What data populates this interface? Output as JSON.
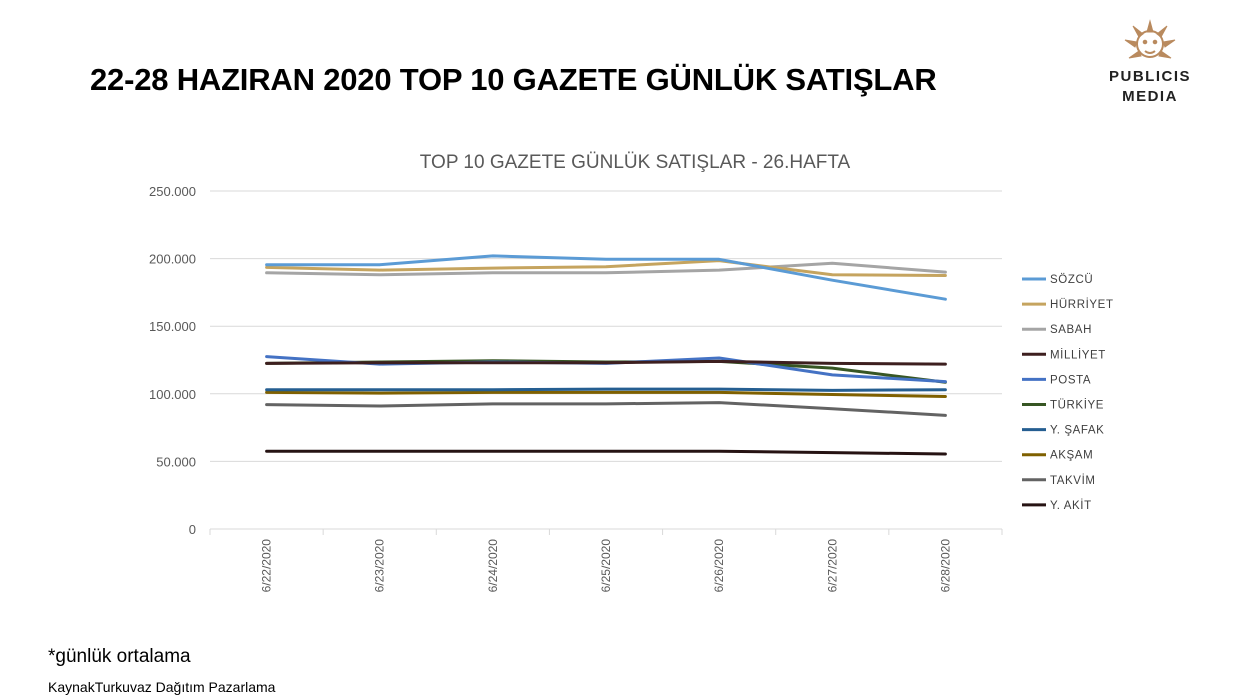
{
  "page": {
    "title": "22-28 HAZIRAN 2020 TOP 10 GAZETE GÜNLÜK SATIŞLAR",
    "footnote": "*günlük ortalama",
    "source": "KaynakTurkuvaz Dağıtım Pazarlama"
  },
  "logo": {
    "line1": "PUBLICIS",
    "line2": "MEDIA",
    "color": "#b98a5e",
    "icon": "lion-head-icon"
  },
  "chart_data": {
    "type": "line",
    "title": "TOP 10 GAZETE GÜNLÜK SATIŞLAR - 26.HAFTA",
    "xlabel": "",
    "ylabel": "",
    "ylim": [
      0,
      250000
    ],
    "y_ticks": [
      "0",
      "50.000",
      "100.000",
      "150.000",
      "200.000",
      "250.000"
    ],
    "y_tick_values": [
      0,
      50000,
      100000,
      150000,
      200000,
      250000
    ],
    "grid": true,
    "legend_position": "right",
    "categories": [
      "6/22/2020",
      "6/23/2020",
      "6/24/2020",
      "6/25/2020",
      "6/26/2020",
      "6/27/2020",
      "6/28/2020"
    ],
    "series": [
      {
        "name": "SÖZCÜ",
        "color": "#5b9bd5",
        "values": [
          195500,
          195500,
          202000,
          199500,
          199500,
          184000,
          170000
        ]
      },
      {
        "name": "HÜRRİYET",
        "color": "#c5a45f",
        "values": [
          193500,
          191500,
          193000,
          194000,
          198500,
          188000,
          187500
        ]
      },
      {
        "name": "SABAH",
        "color": "#a5a5a5",
        "values": [
          189500,
          188000,
          189500,
          189500,
          191500,
          196500,
          190000
        ]
      },
      {
        "name": "MİLLİYET",
        "color": "#3d1f1f",
        "values": [
          122500,
          123000,
          123000,
          123000,
          124000,
          122500,
          122000
        ]
      },
      {
        "name": "POSTA",
        "color": "#4472c4",
        "values": [
          127500,
          122000,
          123500,
          122500,
          126500,
          114000,
          109000
        ]
      },
      {
        "name": "TÜRKİYE",
        "color": "#375623",
        "values": [
          122500,
          123500,
          124500,
          123500,
          124000,
          119000,
          108500
        ]
      },
      {
        "name": "Y. ŞAFAK",
        "color": "#255e91",
        "values": [
          103000,
          103000,
          103000,
          103500,
          103500,
          102500,
          103000
        ]
      },
      {
        "name": "AKŞAM",
        "color": "#7f6000",
        "values": [
          101000,
          100500,
          101000,
          101000,
          101000,
          99500,
          98000
        ]
      },
      {
        "name": "TAKVİM",
        "color": "#636363",
        "values": [
          92000,
          91000,
          92500,
          92500,
          93500,
          89000,
          84000
        ]
      },
      {
        "name": "Y. AKİT",
        "color": "#261313",
        "values": [
          57500,
          57500,
          57500,
          57500,
          57500,
          56500,
          55500
        ]
      }
    ]
  }
}
